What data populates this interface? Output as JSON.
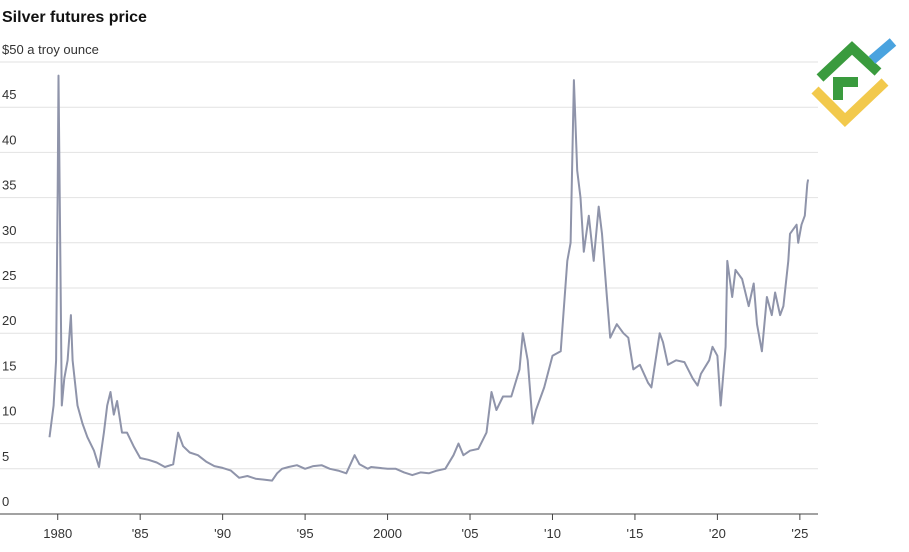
{
  "chart_data": {
    "type": "line",
    "title": "Silver futures price",
    "color": "#8f94aa",
    "xlim": [
      1976.5,
      2026.1
    ],
    "ylim": [
      0,
      50
    ],
    "xticks": [
      {
        "value": 1980,
        "label": "1980"
      },
      {
        "value": 1985,
        "label": "'85"
      },
      {
        "value": 1990,
        "label": "'90"
      },
      {
        "value": 1995,
        "label": "'95"
      },
      {
        "value": 2000,
        "label": "2000"
      },
      {
        "value": 2005,
        "label": "'05"
      },
      {
        "value": 2010,
        "label": "'10"
      },
      {
        "value": 2015,
        "label": "'15"
      },
      {
        "value": 2020,
        "label": "'20"
      },
      {
        "value": 2025,
        "label": "'25"
      }
    ],
    "yticks": [
      0,
      5,
      10,
      15,
      20,
      25,
      30,
      35,
      40,
      45,
      {
        "value": 50,
        "label": "$50 a troy ounce"
      }
    ],
    "grid": true,
    "x": [
      1979.5,
      1979.75,
      1979.9,
      1980.0,
      1980.05,
      1980.15,
      1980.25,
      1980.4,
      1980.6,
      1980.8,
      1980.9,
      1981.2,
      1981.5,
      1981.8,
      1982.2,
      1982.5,
      1982.8,
      1983.0,
      1983.2,
      1983.4,
      1983.6,
      1983.9,
      1984.2,
      1984.6,
      1985.0,
      1985.5,
      1986.0,
      1986.5,
      1987.0,
      1987.3,
      1987.6,
      1988.0,
      1988.5,
      1989.0,
      1989.5,
      1990.0,
      1990.5,
      1991.0,
      1991.5,
      1992.0,
      1992.5,
      1993.0,
      1993.3,
      1993.6,
      1994.0,
      1994.5,
      1995.0,
      1995.5,
      1996.0,
      1996.5,
      1997.0,
      1997.5,
      1998.0,
      1998.3,
      1998.8,
      1999.0,
      1999.5,
      2000.0,
      2000.5,
      2001.0,
      2001.5,
      2002.0,
      2002.5,
      2003.0,
      2003.5,
      2004.0,
      2004.3,
      2004.6,
      2005.0,
      2005.5,
      2006.0,
      2006.3,
      2006.6,
      2007.0,
      2007.5,
      2008.0,
      2008.2,
      2008.5,
      2008.8,
      2009.0,
      2009.5,
      2010.0,
      2010.5,
      2010.9,
      2011.1,
      2011.3,
      2011.5,
      2011.7,
      2011.9,
      2012.2,
      2012.5,
      2012.8,
      2013.0,
      2013.3,
      2013.5,
      2013.9,
      2014.3,
      2014.6,
      2014.9,
      2015.3,
      2015.8,
      2016.0,
      2016.5,
      2016.7,
      2017.0,
      2017.5,
      2018.0,
      2018.5,
      2018.8,
      2019.0,
      2019.5,
      2019.7,
      2020.0,
      2020.2,
      2020.5,
      2020.6,
      2020.9,
      2021.1,
      2021.5,
      2021.9,
      2022.2,
      2022.4,
      2022.7,
      2023.0,
      2023.3,
      2023.5,
      2023.8,
      2024.0,
      2024.3,
      2024.4,
      2024.8,
      2024.9,
      2025.1,
      2025.3,
      2025.45,
      2025.5
    ],
    "values": [
      8.5,
      12,
      17,
      36,
      48.5,
      30,
      12,
      15,
      17,
      22,
      17,
      12,
      10,
      8.5,
      7,
      5.2,
      9,
      12,
      13.5,
      11,
      12.5,
      9,
      9,
      7.5,
      6.2,
      6,
      5.7,
      5.2,
      5.5,
      9,
      7.5,
      6.8,
      6.5,
      5.8,
      5.3,
      5.1,
      4.8,
      4.0,
      4.2,
      3.9,
      3.8,
      3.7,
      4.5,
      5,
      5.2,
      5.4,
      5.0,
      5.3,
      5.4,
      5.0,
      4.8,
      4.5,
      6.5,
      5.5,
      5.0,
      5.2,
      5.1,
      5.0,
      5.0,
      4.6,
      4.3,
      4.6,
      4.5,
      4.8,
      5,
      6.5,
      7.8,
      6.5,
      7,
      7.2,
      9,
      13.5,
      11.5,
      13,
      13,
      16,
      20,
      17,
      10,
      11.5,
      14,
      17.5,
      18,
      28,
      30,
      48,
      38,
      35,
      29,
      33,
      28,
      34,
      31,
      24,
      19.5,
      21,
      20,
      19.5,
      16,
      16.5,
      14.5,
      14,
      20,
      19,
      16.5,
      17,
      16.8,
      15,
      14.2,
      15.5,
      17,
      18.5,
      17.5,
      12,
      18.5,
      28,
      24,
      27,
      26,
      23,
      25.5,
      21,
      18,
      24,
      22,
      24.5,
      22,
      23,
      28,
      31,
      32,
      30,
      32,
      33,
      36.5,
      37
    ]
  }
}
